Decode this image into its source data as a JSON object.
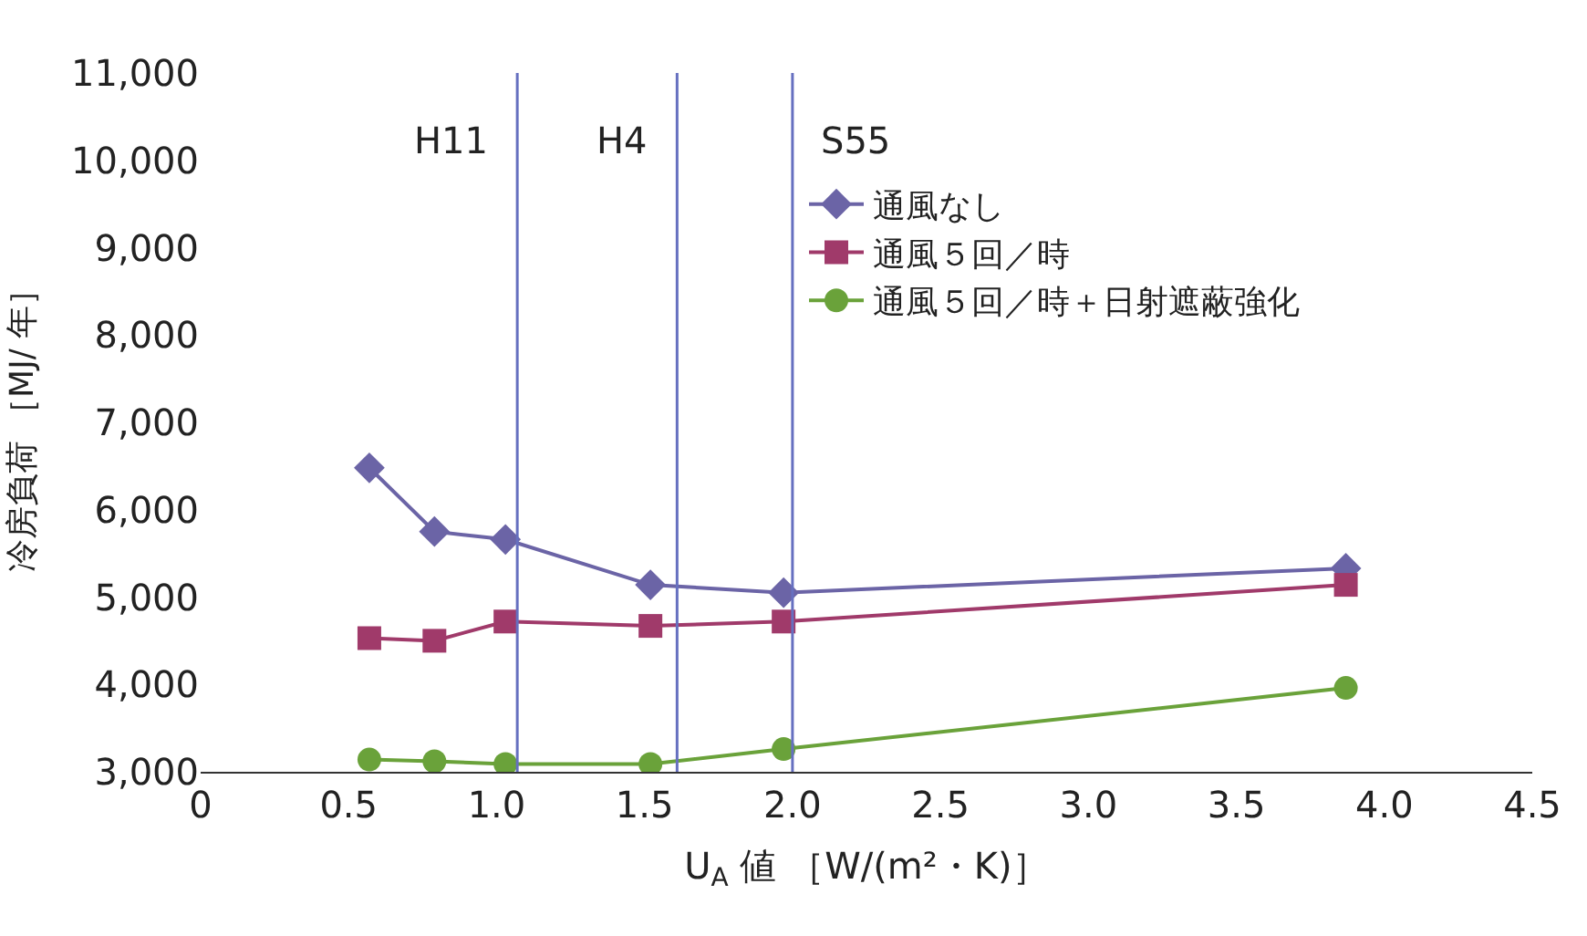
{
  "chart_data": {
    "type": "line",
    "xlabel": "U$_{A}$ 値 ［W/(m²・K)］",
    "ylabel": "冷房負荷 ［MJ/ 年］",
    "x": [
      0.57,
      0.79,
      1.03,
      1.52,
      1.97,
      3.87
    ],
    "series": [
      {
        "name": "通風なし",
        "color": "#6b64a6",
        "marker": "diamond",
        "values": [
          6480,
          5750,
          5660,
          5140,
          5050,
          5330
        ]
      },
      {
        "name": "通風５回／時",
        "color": "#a03a6a",
        "marker": "square",
        "values": [
          4530,
          4500,
          4720,
          4670,
          4720,
          5140
        ]
      },
      {
        "name": "通風５回／時＋日射遮蔽強化",
        "color": "#6aa23a",
        "marker": "circle",
        "values": [
          3140,
          3120,
          3090,
          3090,
          3260,
          3960
        ]
      }
    ],
    "xlim": [
      0,
      4.5
    ],
    "xticks": [
      {
        "value": 0,
        "label": "0"
      },
      {
        "value": 0.5,
        "label": "0.5"
      },
      {
        "value": 1,
        "label": "1.0"
      },
      {
        "value": 1.5,
        "label": "1.5"
      },
      {
        "value": 2,
        "label": "2.0"
      },
      {
        "value": 2.5,
        "label": "2.5"
      },
      {
        "value": 3,
        "label": "3.0"
      },
      {
        "value": 3.5,
        "label": "3.5"
      },
      {
        "value": 4,
        "label": "4.0"
      },
      {
        "value": 4.5,
        "label": "4.5"
      }
    ],
    "ylim": [
      3000,
      11000
    ],
    "yticks": [
      {
        "value": 3000,
        "label": "3,000"
      },
      {
        "value": 4000,
        "label": "4,000"
      },
      {
        "value": 5000,
        "label": "5,000"
      },
      {
        "value": 6000,
        "label": "6,000"
      },
      {
        "value": 7000,
        "label": "7,000"
      },
      {
        "value": 8000,
        "label": "8,000"
      },
      {
        "value": 9000,
        "label": "9,000"
      },
      {
        "value": 10000,
        "label": "10,000"
      },
      {
        "value": 11000,
        "label": "11,000"
      }
    ],
    "ref_lines": [
      {
        "axis": "x",
        "value": 1.07,
        "color": "#6670c0",
        "label": "H11"
      },
      {
        "axis": "x",
        "value": 1.61,
        "color": "#6670c0",
        "label": "H4"
      },
      {
        "axis": "x",
        "value": 2.0,
        "color": "#6670c0",
        "label": "S55"
      }
    ],
    "legend": "top"
  }
}
